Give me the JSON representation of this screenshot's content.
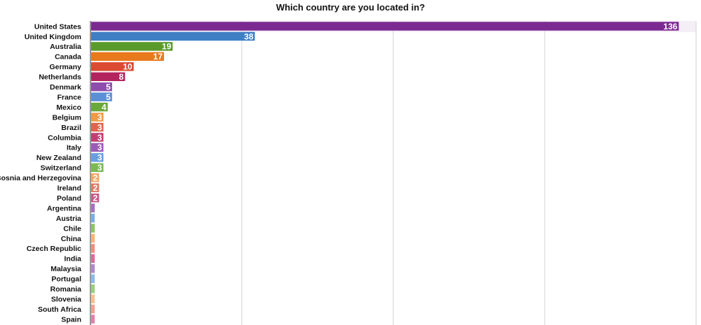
{
  "chart_data": {
    "type": "bar",
    "orientation": "horizontal",
    "title": "Which country are you located in?",
    "xlabel": "",
    "ylabel": "",
    "xlim": [
      0,
      140
    ],
    "grid": true,
    "categories": [
      "United States",
      "United Kingdom",
      "Australia",
      "Canada",
      "Germany",
      "Netherlands",
      "Denmark",
      "France",
      "Mexico",
      "Belgium",
      "Brazil",
      "Columbia",
      "Italy",
      "New Zealand",
      "Switzerland",
      "Bosnia and Herzegovina",
      "Ireland",
      "Poland",
      "Argentina",
      "Austria",
      "Chile",
      "China",
      "Czech Republic",
      "India",
      "Malaysia",
      "Portugal",
      "Romania",
      "Slovenia",
      "South Africa",
      "Spain"
    ],
    "values": [
      136,
      38,
      19,
      17,
      10,
      8,
      5,
      5,
      4,
      3,
      3,
      3,
      3,
      3,
      3,
      2,
      2,
      2,
      1,
      1,
      1,
      1,
      1,
      1,
      1,
      1,
      1,
      1,
      1,
      1
    ],
    "colors": [
      "#7b2a91",
      "#3f7fc4",
      "#5a9a2a",
      "#e8791d",
      "#dc4a32",
      "#b3245e",
      "#8e4cac",
      "#5b8fd6",
      "#6aa83a",
      "#ef9a45",
      "#e0654e",
      "#c23f73",
      "#9b5bb8",
      "#6a9ee0",
      "#7cb955",
      "#f2a866",
      "#e47a66",
      "#cd5888",
      "#a572c0",
      "#7daee6",
      "#8dc46b",
      "#f4b47d",
      "#ea907f",
      "#d66f9a",
      "#b189ca",
      "#8fbbe9",
      "#9cce80",
      "#f6c093",
      "#eea393",
      "#de85ab"
    ]
  }
}
